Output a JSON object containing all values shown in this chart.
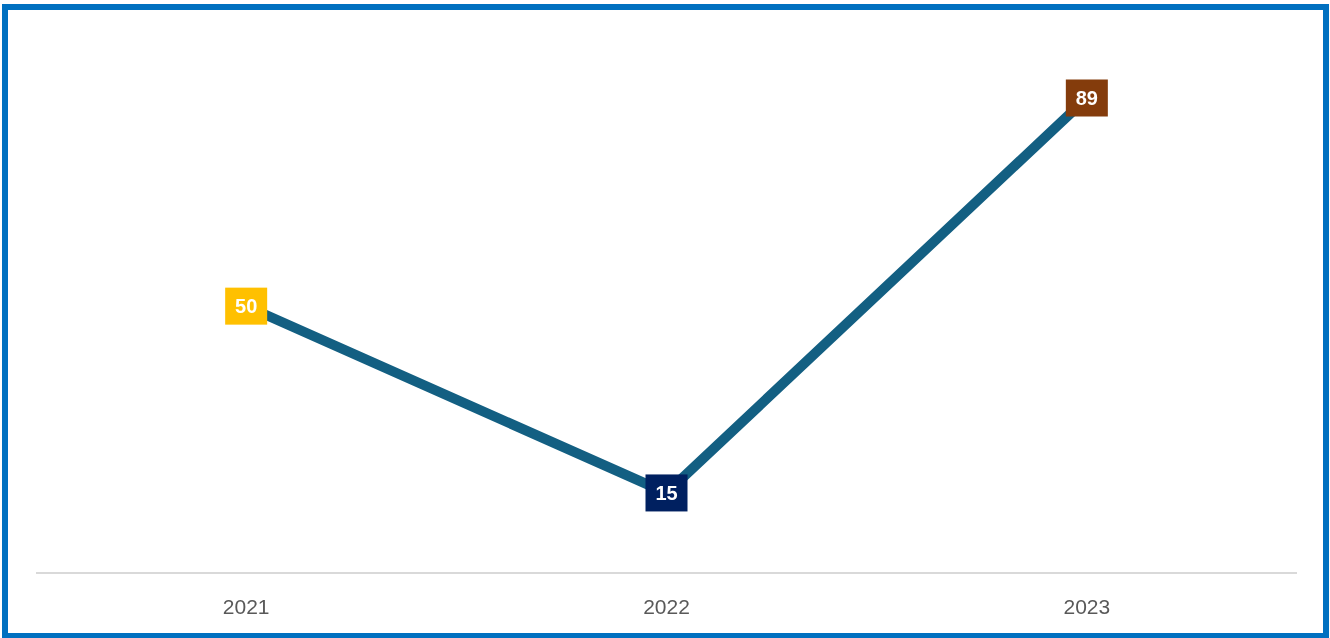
{
  "chart_data": {
    "type": "line",
    "categories": [
      "2021",
      "2022",
      "2023"
    ],
    "series": [
      {
        "color": "#135f82",
        "values": [
          50,
          15,
          89
        ],
        "colors": [
          "#ffc000",
          "#002060",
          "#843c0c"
        ]
      }
    ],
    "marker": "square",
    "data_labels": true
  }
}
